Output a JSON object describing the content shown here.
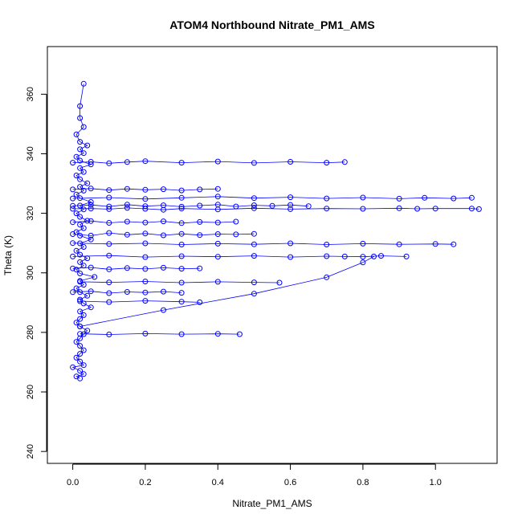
{
  "chart_data": {
    "type": "scatter",
    "title": "ATOM4 Northbound Nitrate_PM1_AMS",
    "xlabel": "Nitrate_PM1_AMS",
    "ylabel": "Theta (K)",
    "xlim": [
      -0.07,
      1.17
    ],
    "ylim": [
      236,
      376
    ],
    "xticks": [
      "0.0",
      "0.2",
      "0.4",
      "0.6",
      "0.8",
      "1.0"
    ],
    "yticks": [
      "240",
      "260",
      "280",
      "300",
      "320",
      "340",
      "360"
    ],
    "grid": false,
    "legend": "none",
    "marker": "open-circle",
    "lines_connect_points": true,
    "color": "#0000ff",
    "series": [
      {
        "x": [
          0.02,
          0.01,
          0.03,
          0.02,
          0.0,
          0.03,
          0.02,
          0.01,
          0.02,
          0.03,
          0.02,
          0.01,
          0.02,
          0.03,
          0.04,
          0.02,
          0.01,
          0.02,
          0.03,
          0.02,
          0.05,
          0.03,
          0.02,
          0.04,
          0.02,
          0.01,
          0.03,
          0.02,
          0.06,
          0.02,
          0.01,
          0.03,
          0.02,
          0.04,
          0.02,
          0.01,
          0.03,
          0.02,
          0.05,
          0.02,
          0.01,
          0.03,
          0.02,
          0.04,
          0.02,
          0.01,
          0.03,
          0.02,
          0.05,
          0.02,
          0.01,
          0.03,
          0.02,
          0.04,
          0.02,
          0.01,
          0.03,
          0.02,
          0.05,
          0.02,
          0.01,
          0.03,
          0.02,
          0.04,
          0.02,
          0.01,
          0.03,
          0.02,
          0.02,
          0.03
        ],
        "y": [
          264.5,
          265.2,
          266.0,
          267.1,
          268.3,
          269.0,
          270.2,
          271.5,
          272.8,
          274.0,
          275.5,
          276.8,
          278.0,
          279.4,
          280.6,
          282.0,
          283.3,
          284.5,
          285.8,
          287.0,
          288.4,
          289.7,
          291.0,
          292.3,
          293.5,
          294.8,
          296.0,
          297.3,
          298.6,
          299.8,
          301.1,
          302.4,
          303.6,
          304.9,
          306.1,
          307.4,
          308.7,
          309.9,
          311.2,
          312.5,
          313.7,
          315.0,
          316.2,
          317.5,
          318.8,
          320.0,
          321.3,
          322.6,
          323.8,
          325.1,
          326.3,
          327.6,
          328.9,
          330.1,
          331.4,
          332.7,
          333.9,
          335.2,
          336.4,
          337.7,
          339.0,
          340.2,
          341.5,
          342.8,
          344.0,
          346.5,
          349.0,
          352.0,
          356.0,
          363.5
        ]
      },
      {
        "x": [
          0.0,
          0.05,
          0.1,
          0.15,
          0.2,
          0.25,
          0.3,
          0.4,
          0.5,
          0.6,
          0.7,
          0.8,
          0.9,
          0.95,
          1.0,
          1.1,
          1.12
        ],
        "y": [
          321.5,
          321.6,
          321.4,
          321.8,
          321.5,
          321.2,
          321.6,
          321.3,
          321.7,
          321.4,
          321.6,
          321.5,
          321.7,
          321.5,
          321.6,
          321.6,
          321.4
        ]
      },
      {
        "x": [
          0.0,
          0.1,
          0.2,
          0.3,
          0.4,
          0.5,
          0.6,
          0.7,
          0.8,
          0.9,
          0.97,
          1.05,
          1.1
        ],
        "y": [
          325.0,
          325.3,
          324.8,
          325.2,
          325.6,
          325.1,
          325.4,
          325.0,
          325.3,
          324.9,
          325.2,
          325.0,
          325.2
        ]
      },
      {
        "x": [
          0.0,
          0.1,
          0.2,
          0.3,
          0.4,
          0.5,
          0.6,
          0.7,
          0.8,
          0.9,
          1.0,
          1.05
        ],
        "y": [
          310.0,
          309.7,
          309.9,
          309.5,
          309.8,
          309.6,
          309.9,
          309.5,
          309.8,
          309.6,
          309.7,
          309.6
        ]
      },
      {
        "x": [
          0.0,
          0.1,
          0.2,
          0.3,
          0.4,
          0.5,
          0.6,
          0.7,
          0.75,
          0.8,
          0.85,
          0.92
        ],
        "y": [
          305.5,
          305.8,
          305.3,
          305.6,
          305.4,
          305.7,
          305.3,
          305.6,
          305.5,
          305.4,
          305.7,
          305.5
        ]
      },
      {
        "x": [
          0.0,
          0.05,
          0.1,
          0.15,
          0.2,
          0.3,
          0.4,
          0.5,
          0.6,
          0.7,
          0.75
        ],
        "y": [
          337.0,
          337.3,
          336.8,
          337.2,
          337.5,
          337.0,
          337.4,
          336.9,
          337.3,
          337.0,
          337.2
        ]
      },
      {
        "x": [
          0.02,
          0.1,
          0.2,
          0.3,
          0.4,
          0.5,
          0.57
        ],
        "y": [
          297.0,
          296.8,
          297.1,
          296.7,
          297.0,
          296.8,
          296.7
        ]
      },
      {
        "x": [
          0.02,
          0.1,
          0.2,
          0.3,
          0.35
        ],
        "y": [
          290.5,
          290.2,
          290.6,
          290.3,
          290.1
        ]
      },
      {
        "x": [
          0.02,
          0.1,
          0.2,
          0.3,
          0.4,
          0.46
        ],
        "y": [
          279.5,
          279.3,
          279.6,
          279.4,
          279.5,
          279.4
        ]
      },
      {
        "x": [
          0.02,
          0.25,
          0.5,
          0.7,
          0.8,
          0.83
        ],
        "y": [
          282.0,
          287.5,
          293.0,
          298.5,
          303.5,
          305.5
        ]
      },
      {
        "x": [
          0.0,
          0.05,
          0.1,
          0.15,
          0.2,
          0.25,
          0.3,
          0.35,
          0.4,
          0.45,
          0.5,
          0.55,
          0.6,
          0.65
        ],
        "y": [
          322.5,
          322.8,
          322.3,
          322.9,
          322.4,
          322.7,
          322.2,
          322.6,
          322.9,
          322.3,
          322.7,
          322.5,
          322.8,
          322.4
        ]
      },
      {
        "x": [
          0.0,
          0.05,
          0.1,
          0.15,
          0.2,
          0.25,
          0.3,
          0.35,
          0.4,
          0.45,
          0.5
        ],
        "y": [
          313.0,
          312.5,
          313.4,
          312.8,
          313.2,
          312.6,
          313.1,
          312.7,
          313.0,
          312.9,
          313.1
        ]
      },
      {
        "x": [
          0.0,
          0.05,
          0.1,
          0.15,
          0.2,
          0.25,
          0.3,
          0.35,
          0.4,
          0.45
        ],
        "y": [
          317.0,
          317.4,
          316.8,
          317.2,
          316.9,
          317.3,
          316.7,
          317.1,
          316.9,
          317.2
        ]
      },
      {
        "x": [
          0.0,
          0.05,
          0.1,
          0.15,
          0.2,
          0.25,
          0.3,
          0.35,
          0.4
        ],
        "y": [
          328.0,
          328.3,
          327.8,
          328.2,
          327.9,
          328.1,
          327.7,
          328.0,
          328.2
        ]
      },
      {
        "x": [
          0.0,
          0.05,
          0.1,
          0.15,
          0.2,
          0.25,
          0.3,
          0.35
        ],
        "y": [
          301.5,
          301.8,
          301.2,
          301.6,
          301.3,
          301.7,
          301.4,
          301.5
        ]
      },
      {
        "x": [
          0.0,
          0.05,
          0.1,
          0.15,
          0.2,
          0.25,
          0.3
        ],
        "y": [
          293.5,
          293.8,
          293.2,
          293.6,
          293.4,
          293.7,
          293.3
        ]
      }
    ]
  }
}
